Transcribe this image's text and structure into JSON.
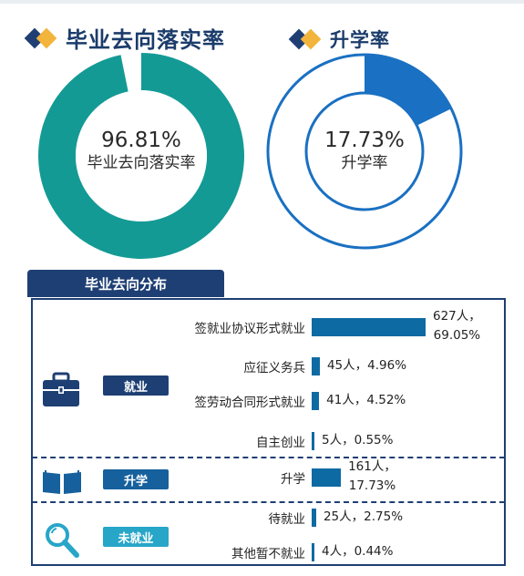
{
  "titles": {
    "left": "毕业去向落实率",
    "right": "升学率"
  },
  "donuts": {
    "left": {
      "percent_label": "96.81%",
      "sub_label": "毕业去向落实率",
      "value": 96.81,
      "color": "#149a95"
    },
    "right": {
      "percent_label": "17.73%",
      "sub_label": "升学率",
      "value": 17.73,
      "color": "#1a70c2"
    }
  },
  "section": {
    "title": "毕业去向分布"
  },
  "categories": {
    "employment": {
      "label": "就业",
      "color": "#1e3f73",
      "icon": "briefcase-icon"
    },
    "further": {
      "label": "升学",
      "color": "#16609d",
      "icon": "book-icon"
    },
    "unemployed": {
      "label": "未就业",
      "color": "#27a6c8",
      "icon": "magnifier-icon"
    }
  },
  "chart_data": [
    {
      "type": "pie",
      "title": "毕业去向落实率",
      "categories": [
        "毕业去向落实率"
      ],
      "values": [
        96.81
      ]
    },
    {
      "type": "pie",
      "title": "升学率",
      "categories": [
        "升学率"
      ],
      "values": [
        17.73
      ]
    },
    {
      "type": "bar",
      "title": "毕业去向分布",
      "categories": [
        "签就业协议形式就业",
        "应征义务兵",
        "签劳动合同形式就业",
        "自主创业",
        "升学",
        "待就业",
        "其他暂不就业"
      ],
      "values": [
        627,
        45,
        41,
        5,
        161,
        25,
        4
      ],
      "percents": [
        69.05,
        4.96,
        4.52,
        0.55,
        17.73,
        2.75,
        0.44
      ],
      "value_labels": [
        "627人，69.05%",
        "45人，4.96%",
        "41人，4.52%",
        "5人，0.55%",
        "161人，17.73%",
        "25人，2.75%",
        "4人，0.44%"
      ],
      "label_lines": [
        [
          "627人，",
          "69.05%"
        ],
        [
          "45人，4.96%"
        ],
        [
          "41人，4.52%"
        ],
        [
          "5人，0.55%"
        ],
        [
          "161人，",
          "17.73%"
        ],
        [
          "25人，2.75%"
        ],
        [
          "4人，0.44%"
        ]
      ],
      "groups": [
        "就业",
        "就业",
        "就业",
        "就业",
        "升学",
        "未就业",
        "未就业"
      ]
    }
  ]
}
